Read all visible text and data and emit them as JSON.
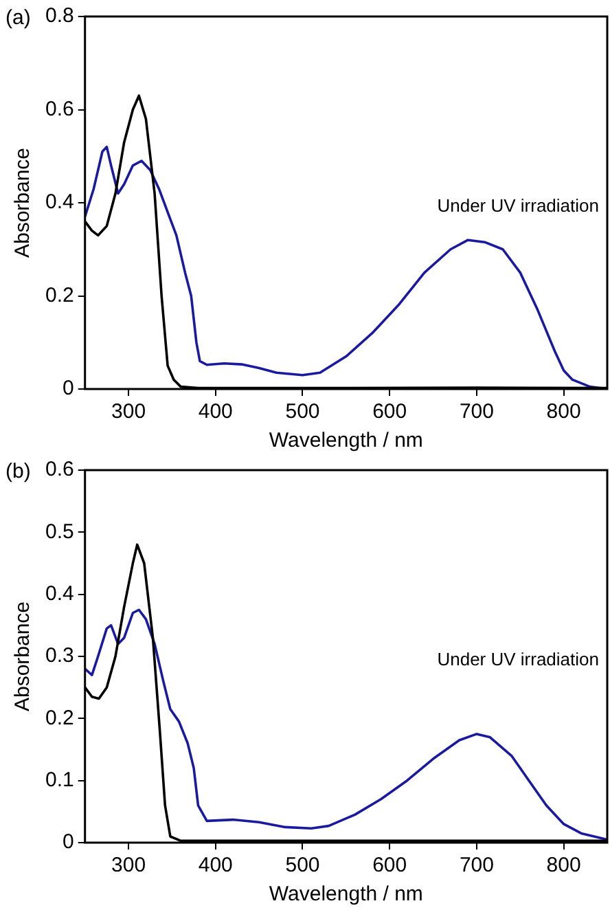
{
  "chart_data": [
    {
      "type": "line",
      "xlabel": "Wavelength / nm",
      "ylabel": "Absorbance",
      "annotations": [
        "(a)",
        "Under UV irradiation"
      ],
      "xlim": [
        250,
        850
      ],
      "xticks": [
        300,
        400,
        500,
        600,
        700,
        800
      ],
      "ylim": [
        0,
        0.8
      ],
      "yticks": [
        0,
        0.2,
        0.4,
        0.6,
        0.8
      ],
      "grid": false,
      "legend": false,
      "marker": "none",
      "line_style": "solid",
      "series": [
        {
          "color": "#000000",
          "x": [
            250,
            258,
            265,
            275,
            285,
            295,
            305,
            312,
            320,
            330,
            338,
            345,
            352,
            360,
            380,
            500,
            700,
            850
          ],
          "values": [
            0.36,
            0.34,
            0.33,
            0.35,
            0.42,
            0.53,
            0.6,
            0.63,
            0.58,
            0.42,
            0.2,
            0.05,
            0.02,
            0.005,
            0.002,
            0.002,
            0.003,
            0.002
          ]
        },
        {
          "color": "#1a1aa0",
          "x": [
            250,
            260,
            270,
            275,
            280,
            288,
            295,
            305,
            315,
            325,
            335,
            345,
            355,
            365,
            372,
            378,
            382,
            390,
            410,
            430,
            450,
            470,
            500,
            520,
            550,
            580,
            610,
            640,
            670,
            690,
            710,
            730,
            750,
            770,
            790,
            800,
            810,
            830,
            850
          ],
          "values": [
            0.37,
            0.43,
            0.51,
            0.52,
            0.48,
            0.42,
            0.44,
            0.48,
            0.49,
            0.47,
            0.43,
            0.38,
            0.33,
            0.25,
            0.2,
            0.1,
            0.06,
            0.052,
            0.055,
            0.053,
            0.045,
            0.035,
            0.03,
            0.035,
            0.07,
            0.12,
            0.18,
            0.25,
            0.3,
            0.32,
            0.315,
            0.3,
            0.25,
            0.17,
            0.08,
            0.04,
            0.02,
            0.005,
            0
          ]
        }
      ]
    },
    {
      "type": "line",
      "xlabel": "Wavelength / nm",
      "ylabel": "Absorbance",
      "annotations": [
        "(b)",
        "Under UV irradiation"
      ],
      "xlim": [
        250,
        850
      ],
      "xticks": [
        300,
        400,
        500,
        600,
        700,
        800
      ],
      "ylim": [
        0,
        0.6
      ],
      "yticks": [
        0,
        0.1,
        0.2,
        0.3,
        0.4,
        0.5,
        0.6
      ],
      "grid": false,
      "legend": false,
      "marker": "none",
      "line_style": "solid",
      "series": [
        {
          "color": "#000000",
          "x": [
            250,
            258,
            266,
            275,
            285,
            295,
            305,
            310,
            318,
            328,
            336,
            342,
            348,
            360,
            500,
            850
          ],
          "values": [
            0.25,
            0.235,
            0.232,
            0.25,
            0.3,
            0.38,
            0.45,
            0.48,
            0.45,
            0.33,
            0.18,
            0.06,
            0.01,
            0.003,
            0.003,
            0.003
          ]
        },
        {
          "color": "#1a1aa0",
          "x": [
            250,
            258,
            265,
            275,
            280,
            288,
            295,
            305,
            312,
            320,
            330,
            340,
            348,
            358,
            368,
            375,
            380,
            390,
            420,
            450,
            480,
            510,
            530,
            560,
            590,
            620,
            650,
            680,
            700,
            715,
            740,
            760,
            780,
            800,
            820,
            850
          ],
          "values": [
            0.28,
            0.27,
            0.3,
            0.345,
            0.35,
            0.32,
            0.33,
            0.37,
            0.375,
            0.36,
            0.32,
            0.26,
            0.215,
            0.195,
            0.16,
            0.12,
            0.06,
            0.035,
            0.037,
            0.033,
            0.025,
            0.023,
            0.027,
            0.045,
            0.07,
            0.1,
            0.135,
            0.165,
            0.175,
            0.17,
            0.14,
            0.1,
            0.06,
            0.03,
            0.015,
            0.005
          ]
        }
      ]
    }
  ]
}
